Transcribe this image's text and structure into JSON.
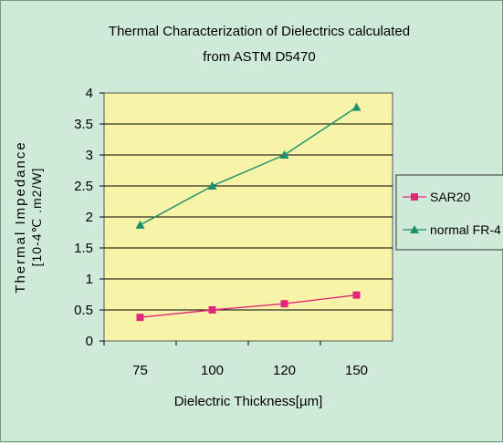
{
  "chart_data": {
    "type": "line",
    "title_lines": [
      "Thermal Characterization of Dielectrics calculated",
      "from ASTM D5470"
    ],
    "xlabel": "Dielectric Thickness[µm]",
    "ylabel_line1": "Thermal Impedance",
    "ylabel_line2": "[10-4℃ .m2/W]",
    "categories": [
      "75",
      "100",
      "120",
      "150"
    ],
    "ylim": [
      0,
      4
    ],
    "yticks": [
      "0",
      "0.5",
      "1",
      "1.5",
      "2",
      "2.5",
      "3",
      "3.5",
      "4"
    ],
    "grid": "horizontal",
    "legend_position": "right",
    "plot_background": "#f7f3a8",
    "page_background": "#cfead8",
    "series": [
      {
        "name": "SAR20",
        "values": [
          0.38,
          0.5,
          0.6,
          0.74
        ],
        "color": "#e0287a",
        "marker": "square"
      },
      {
        "name": "normal FR-4",
        "values": [
          1.87,
          2.5,
          3.0,
          3.77
        ],
        "color": "#1a8f6a",
        "marker": "triangle"
      }
    ]
  }
}
